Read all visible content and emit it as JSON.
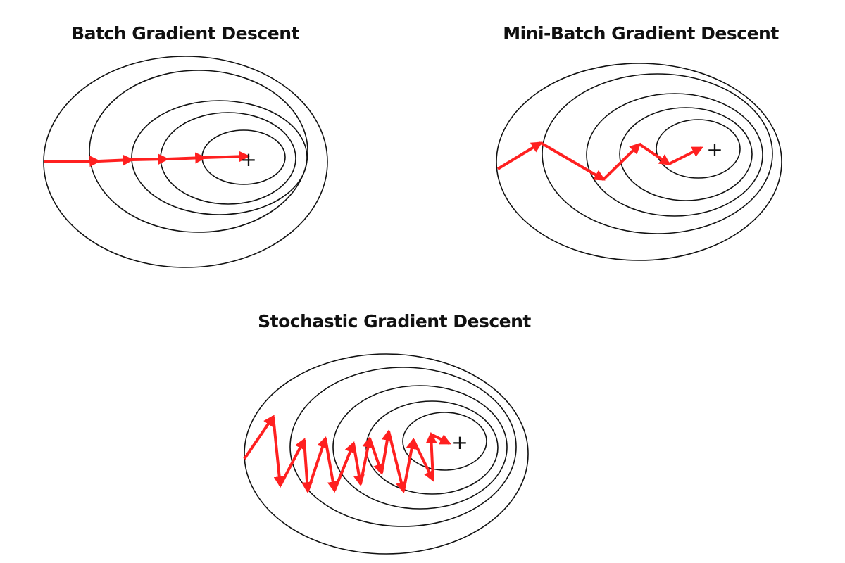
{
  "panels": [
    {
      "id": "batch",
      "title": "Batch Gradient Descent"
    },
    {
      "id": "minibatch",
      "title": "Mini-Batch Gradient Descent"
    },
    {
      "id": "stochastic",
      "title": "Stochastic Gradient Descent"
    }
  ],
  "minimum_marker": "+",
  "colors": {
    "path": "#ff2020",
    "contour": "#111111",
    "background": "#ffffff"
  }
}
